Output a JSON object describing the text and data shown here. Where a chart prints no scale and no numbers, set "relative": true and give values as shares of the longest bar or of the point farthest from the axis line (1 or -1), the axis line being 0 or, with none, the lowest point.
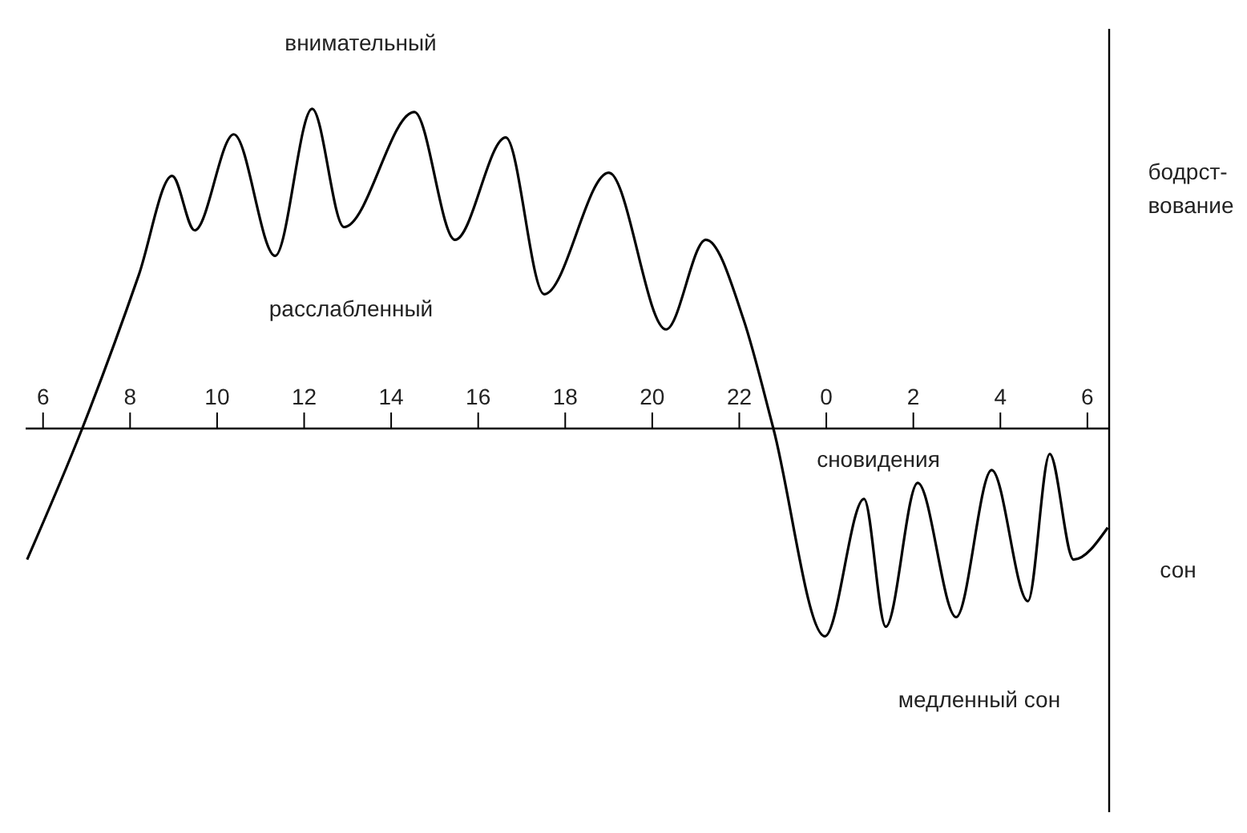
{
  "chart_data": {
    "type": "line",
    "relative": true,
    "marker": "none",
    "annotations": [
      "внимательный",
      "расслабленный",
      "бодрст-\nвование",
      "сновидения",
      "медленный сон",
      "сон"
    ],
    "x": [
      "--01-01T05:38",
      "--01-01T06:54",
      "--01-01T08:12",
      "--01-01T08:58",
      "--01-01T09:29",
      "--01-01T10:23",
      "--01-01T11:20",
      "--01-01T12:11",
      "--01-01T12:55",
      "--01-01T14:32",
      "--01-01T15:28",
      "--01-01T16:38",
      "--01-01T17:31",
      "--01-01T19:00",
      "--01-01T20:19",
      "--01-01T21:14",
      "--01-01T22:06",
      "--01-01T22:47",
      "--01-01T23:58",
      "--01-02T00:52",
      "--01-02T01:22",
      "--01-02T02:06",
      "--01-02T02:59",
      "--01-02T03:48",
      "--01-02T04:38",
      "--01-02T05:08",
      "--01-02T05:41",
      "--01-02T06:28"
    ],
    "xlim": [
      "--01-01T05:36",
      "--01-02T06:30"
    ],
    "xticks": [
      {
        "value": "--01-01T06:00",
        "label": "6"
      },
      {
        "value": "--01-01T08:00",
        "label": "8"
      },
      {
        "value": "--01-01T10:00",
        "label": "10"
      },
      {
        "value": "--01-01T12:00",
        "label": "12"
      },
      {
        "value": "--01-01T14:00",
        "label": "14"
      },
      {
        "value": "--01-01T16:00",
        "label": "16"
      },
      {
        "value": "--01-01T18:00",
        "label": "18"
      },
      {
        "value": "--01-01T20:00",
        "label": "20"
      },
      {
        "value": "--01-01T22:00",
        "label": "22"
      },
      {
        "value": "--01-02T00:00",
        "label": "0"
      },
      {
        "value": "--01-02T02:00",
        "label": "2"
      },
      {
        "value": "--01-02T04:00",
        "label": "4"
      },
      {
        "value": "--01-02T06:00",
        "label": "6"
      }
    ],
    "series": [
      {
        "color": "#000000",
        "values": [
          -0.41,
          0,
          0.48,
          0.79,
          0.62,
          0.92,
          0.54,
          1.0,
          0.63,
          0.99,
          0.59,
          0.91,
          0.42,
          0.8,
          0.31,
          0.59,
          0.34,
          0,
          -0.65,
          -0.22,
          -0.62,
          -0.17,
          -0.59,
          -0.13,
          -0.54,
          -0.08,
          -0.41,
          -0.31
        ]
      }
    ]
  }
}
